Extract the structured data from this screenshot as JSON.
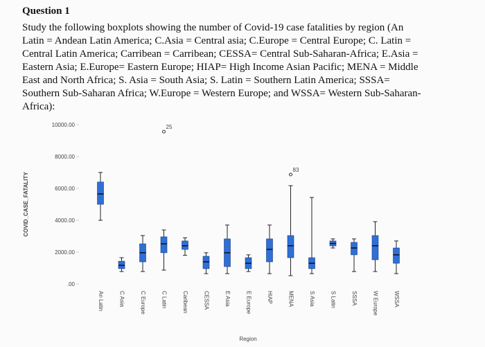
{
  "header": {
    "title": "Question 1"
  },
  "body": {
    "lines": [
      "Study the following boxplots showing the number of Covid-19 case fatalities by region (An",
      "Latin = Andean Latin America; C.Asia = Central asia; C.Europe = Central Europe; C. Latin =",
      "Central Latin America; Carribean = Carribean; CESSA= Central Sub-Saharan-Africa; E.Asia =",
      "Eastern Asia; E.Europe= Eastern Europe; HIAP= High Income Asian Pacific; MENA = Middle",
      "East and North Africa; S. Asia = South Asia; S. Latin = Southern Latin America;  SSSA=",
      "Southern Sub-Saharan Africa; W.Europe = Western Europe; and WSSA= Western Sub-Saharan-",
      "Africa):"
    ]
  },
  "chart_data": {
    "type": "box",
    "x_label": "Region",
    "y_label": "COVID_CASE_FATALITY",
    "categories": [
      "An Latin",
      "C Asia",
      "C Europe",
      "C Latin",
      "Caribean",
      "CESSA",
      "E Asia",
      "E Europe",
      "HIAP",
      "MENA",
      "S Asia",
      "S Latin",
      "SSSA",
      "W Europe",
      "WSSA"
    ],
    "color": "#2f6fd6",
    "min": [
      4000,
      780,
      780,
      870,
      1800,
      650,
      650,
      780,
      650,
      520,
      650,
      2260,
      780,
      780,
      650
    ],
    "q1": [
      5000,
      960,
      1390,
      1960,
      2170,
      960,
      1090,
      960,
      1390,
      1650,
      960,
      2390,
      1830,
      1520,
      1300
    ],
    "median": [
      5650,
      1170,
      1960,
      2520,
      2400,
      1390,
      1960,
      1300,
      2170,
      2400,
      1300,
      2540,
      2260,
      2400,
      1830
    ],
    "q3": [
      6400,
      1430,
      2520,
      2960,
      2700,
      1740,
      2830,
      1650,
      2830,
      3040,
      1650,
      2700,
      2610,
      3040,
      2260
    ],
    "max": [
      7000,
      1650,
      3040,
      3390,
      2900,
      1960,
      3700,
      1830,
      3700,
      6170,
      5430,
      2830,
      2830,
      3910,
      2700
    ],
    "outliers": [
      [],
      [],
      [],
      [
        9560
      ],
      [],
      [],
      [],
      [],
      [],
      [
        6870
      ],
      [],
      [],
      [],
      [],
      []
    ],
    "outlier_labels": [
      [],
      [],
      [],
      [
        "25"
      ],
      [],
      [],
      [],
      [],
      [],
      [
        "83"
      ],
      [],
      [],
      [],
      [],
      []
    ],
    "ylim": [
      0,
      10000
    ],
    "yticks": [
      {
        "value": 0,
        "label": ".00"
      },
      {
        "value": 2000,
        "label": "2000.00"
      },
      {
        "value": 4000,
        "label": "4000.00"
      },
      {
        "value": 6000,
        "label": "6000.00"
      },
      {
        "value": 8000,
        "label": "8000.00"
      },
      {
        "value": 10000,
        "label": "10000.00"
      }
    ]
  }
}
